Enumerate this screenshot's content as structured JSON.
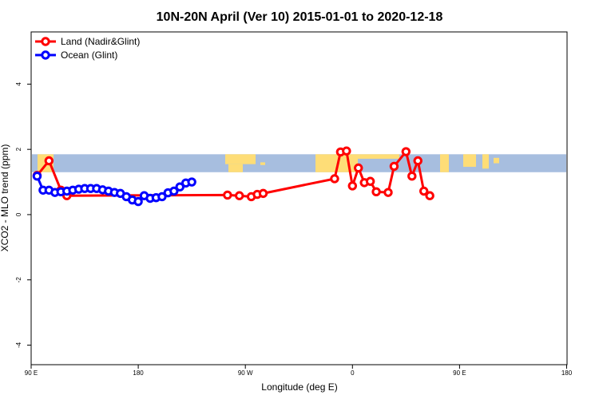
{
  "chart_data": {
    "type": "line",
    "title": "10N-20N April (Ver 10)   2015-01-01 to 2020-12-18",
    "xlabel": "Longitude (deg E)",
    "ylabel": "XCO2 - MLO trend (ppm)",
    "xlim": [
      90,
      450
    ],
    "ylim": [
      -4.6,
      5.6
    ],
    "x_ticks": [
      {
        "value": 90,
        "label": "90 E"
      },
      {
        "value": 180,
        "label": "180"
      },
      {
        "value": 270,
        "label": "90 W"
      },
      {
        "value": 360,
        "label": "0"
      },
      {
        "value": 450,
        "label": "90 E"
      },
      {
        "value": 540,
        "label": "180"
      }
    ],
    "y_ticks": [
      {
        "value": 4,
        "label": "4"
      },
      {
        "value": 2,
        "label": "2"
      },
      {
        "value": 0,
        "label": "0"
      },
      {
        "value": -2,
        "label": "-2"
      },
      {
        "value": -4,
        "label": "-4"
      }
    ],
    "legend_position": "top-left",
    "grid": false,
    "background_map": {
      "latitude_band": "10N-20N",
      "y_range": [
        1.3,
        1.85
      ],
      "ocean_color": "#a7bedf",
      "land_color": "#fedd77"
    },
    "series": [
      {
        "name": "Land (Nadir&Glint)",
        "color": "#ff0000",
        "x": [
          95,
          105,
          115,
          120,
          255,
          265,
          275,
          280,
          285,
          345,
          350,
          355,
          360,
          365,
          370,
          375,
          380,
          390,
          395,
          405,
          410,
          415,
          420,
          425,
          430,
          440,
          450,
          455
        ],
        "y": [
          1.2,
          1.65,
          0.75,
          0.58,
          0.6,
          0.58,
          0.55,
          0.62,
          0.65,
          1.1,
          1.92,
          1.95,
          0.88,
          1.43,
          0.98,
          1.02,
          0.7,
          0.68,
          1.48,
          1.93,
          1.18,
          1.65,
          0.72,
          0.58,
          null,
          null,
          null,
          null
        ]
      },
      {
        "name": "Ocean (Glint)",
        "color": "#0000ff",
        "x": [
          95,
          100,
          105,
          110,
          115,
          120,
          125,
          130,
          135,
          140,
          145,
          150,
          155,
          160,
          165,
          170,
          175,
          180,
          185,
          190,
          195,
          200,
          205,
          210,
          215,
          220,
          225,
          230,
          235,
          240,
          245,
          250,
          255,
          260,
          265,
          270,
          275,
          280,
          285,
          290,
          295,
          300,
          305,
          310,
          315,
          320,
          325,
          330,
          335,
          340,
          345,
          350,
          355,
          360,
          365,
          370,
          375,
          380,
          385,
          390,
          395,
          400,
          405,
          410,
          415,
          420,
          425,
          430
        ],
        "y": [
          1.18,
          0.75,
          0.75,
          0.68,
          0.7,
          0.72,
          0.75,
          0.78,
          0.8,
          0.8,
          0.8,
          0.76,
          0.72,
          0.68,
          0.65,
          0.55,
          0.45,
          0.4,
          0.58,
          0.5,
          0.52,
          0.55,
          0.67,
          0.72,
          0.85,
          0.97,
          1.0,
          null,
          null,
          null,
          null,
          null,
          null,
          null,
          null,
          null,
          null,
          null,
          null,
          null,
          null,
          null,
          null,
          null,
          null,
          null,
          null,
          null,
          null,
          null,
          null,
          null,
          null,
          null,
          null,
          null,
          null,
          null,
          null,
          null,
          null,
          null,
          null,
          null,
          null,
          null,
          null,
          null
        ]
      }
    ]
  }
}
